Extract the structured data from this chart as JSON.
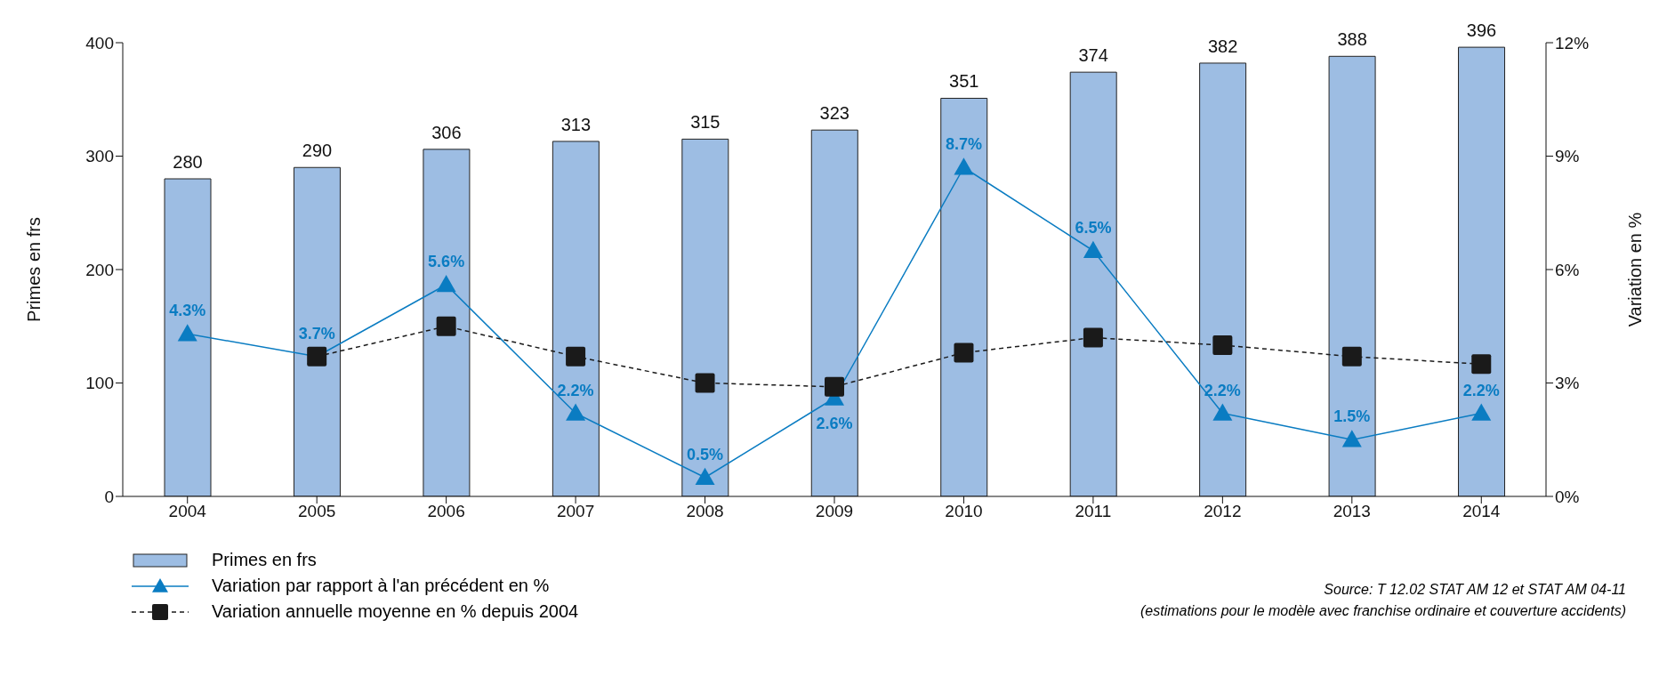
{
  "chart_data": {
    "type": "bar",
    "categories": [
      "2004",
      "2005",
      "2006",
      "2007",
      "2008",
      "2009",
      "2010",
      "2011",
      "2012",
      "2013",
      "2014"
    ],
    "ylabel": "Primes en frs",
    "y2label": "Variation en %",
    "ylim": [
      0,
      400
    ],
    "yticks": [
      0,
      100,
      200,
      300,
      400
    ],
    "y2lim": [
      0,
      12
    ],
    "y2ticks": [
      {
        "value": 0,
        "label": "0%"
      },
      {
        "value": 3,
        "label": "3%"
      },
      {
        "value": 6,
        "label": "6%"
      },
      {
        "value": 9,
        "label": "9%"
      },
      {
        "value": 12,
        "label": "12%"
      }
    ],
    "grid": false,
    "legend": "bottom left",
    "series": [
      {
        "name": "Primes en frs",
        "color": "#9dbde3",
        "values": [
          280,
          290,
          306,
          313,
          315,
          323,
          351,
          374,
          382,
          388,
          396
        ],
        "value_labels": [
          "280",
          "290",
          "306",
          "313",
          "315",
          "323",
          "351",
          "374",
          "382",
          "388",
          "396"
        ]
      },
      {
        "name": "Variation par rapport à l'an précédent en %",
        "type": "line",
        "axis": "y2",
        "color": "#0a7cc2",
        "marker": "triangle",
        "line_style": "solid",
        "values": [
          4.3,
          3.7,
          5.6,
          2.2,
          0.5,
          2.6,
          8.7,
          6.5,
          2.2,
          1.5,
          2.2
        ],
        "value_labels": [
          "4.3%",
          "3.7%",
          "5.6%",
          "2.2%",
          "0.5%",
          "2.6%",
          "8.7%",
          "6.5%",
          "2.2%",
          "1.5%",
          "2.2%"
        ]
      },
      {
        "name": "Variation annuelle moyenne en % depuis 2004",
        "type": "line",
        "axis": "y2",
        "color": "#1a1a1a",
        "marker": "square",
        "line_style": "dashed",
        "values": [
          null,
          3.7,
          4.5,
          3.7,
          3.0,
          2.9,
          3.8,
          4.2,
          4.0,
          3.7,
          3.5
        ]
      }
    ],
    "annotations": [
      "Source: T 12.02 STAT AM 12 et STAT AM 04-11",
      "(estimations pour le modèle avec franchise ordinaire et couverture accidents)"
    ]
  }
}
